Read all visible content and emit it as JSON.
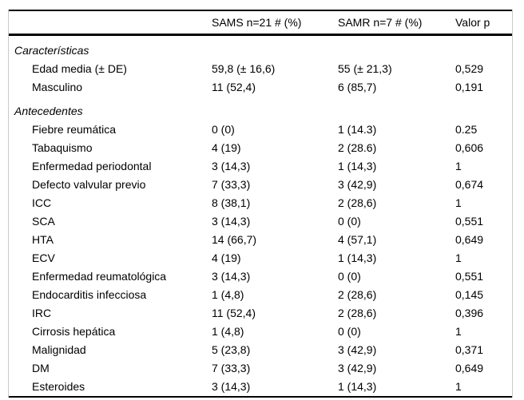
{
  "table": {
    "header": {
      "label_column": "",
      "sams": "SAMS n=21 # (%)",
      "samr": "SAMR n=7 # (%)",
      "valor_p": "Valor p"
    },
    "rows": [
      {
        "type": "section",
        "label": "Características"
      },
      {
        "type": "data",
        "label": "Edad media (± DE)",
        "sams": "59,8 (± 16,6)",
        "samr": "55 (± 21,3)",
        "p": "0,529"
      },
      {
        "type": "data",
        "label": "Masculino",
        "sams": "11 (52,4)",
        "samr": "6 (85,7)",
        "p": "0,191"
      },
      {
        "type": "section",
        "label": "Antecedentes"
      },
      {
        "type": "data",
        "label": "Fiebre reumática",
        "sams": "0 (0)",
        "samr": "1 (14.3)",
        "p": "0.25"
      },
      {
        "type": "data",
        "label": "Tabaquismo",
        "sams": "4 (19)",
        "samr": "2 (28.6)",
        "p": "0,606"
      },
      {
        "type": "data",
        "label": "Enfermedad periodontal",
        "sams": "3 (14,3)",
        "samr": "1 (14,3)",
        "p": "1"
      },
      {
        "type": "data",
        "label": "Defecto valvular previo",
        "sams": "7 (33,3)",
        "samr": "3 (42,9)",
        "p": "0,674"
      },
      {
        "type": "data",
        "label": "ICC",
        "sams": "8 (38,1)",
        "samr": "2 (28,6)",
        "p": "1"
      },
      {
        "type": "data",
        "label": "SCA",
        "sams": "3 (14,3)",
        "samr": "0 (0)",
        "p": "0,551"
      },
      {
        "type": "data",
        "label": "HTA",
        "sams": "14 (66,7)",
        "samr": "4 (57,1)",
        "p": "0,649"
      },
      {
        "type": "data",
        "label": "ECV",
        "sams": "4 (19)",
        "samr": "1 (14,3)",
        "p": "1"
      },
      {
        "type": "data",
        "label": "Enfermedad reumatológica",
        "sams": "3 (14,3)",
        "samr": "0 (0)",
        "p": "0,551"
      },
      {
        "type": "data",
        "label": "Endocarditis infecciosa",
        "sams": "1 (4,8)",
        "samr": "2 (28,6)",
        "p": "0,145"
      },
      {
        "type": "data",
        "label": "IRC",
        "sams": "11 (52,4)",
        "samr": "2 (28,6)",
        "p": "0,396"
      },
      {
        "type": "data",
        "label": "Cirrosis hepática",
        "sams": "1 (4,8)",
        "samr": "0 (0)",
        "p": "1"
      },
      {
        "type": "data",
        "label": "Malignidad",
        "sams": "5 (23,8)",
        "samr": "3 (42,9)",
        "p": "0,371"
      },
      {
        "type": "data",
        "label": "DM",
        "sams": "7 (33,3)",
        "samr": "3 (42,9)",
        "p": "0,649"
      },
      {
        "type": "data",
        "label": "Esteroides",
        "sams": "3 (14,3)",
        "samr": "1 (14,3)",
        "p": "1"
      }
    ]
  },
  "colors": {
    "text": "#000000",
    "horizontal_rule": "#000000",
    "side_border": "#c9c9c9",
    "background": "#ffffff"
  }
}
